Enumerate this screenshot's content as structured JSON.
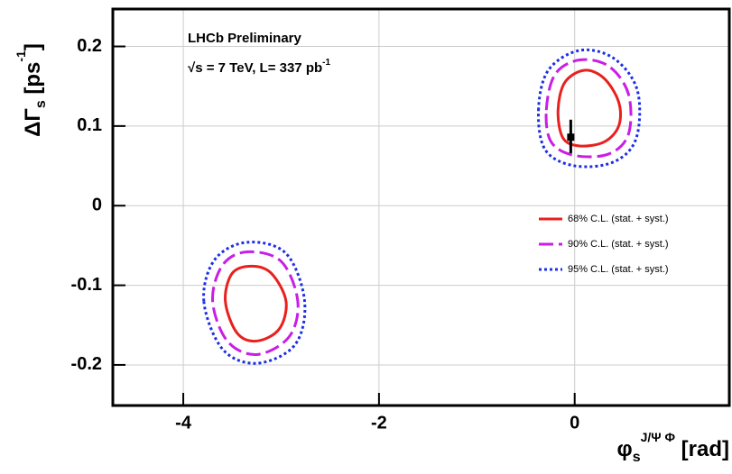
{
  "chart_data": {
    "type": "contour",
    "annotations": [
      "LHCb Preliminary",
      "√s = 7 TeV, L= 337 pb",
      "-1"
    ],
    "xlabel_parts": [
      {
        "text": "φ"
      },
      {
        "text": "s",
        "shift": "sub"
      },
      {
        "text": "J/Ψ Φ",
        "shift": "super"
      },
      {
        "text": " [rad]"
      }
    ],
    "ylabel_parts": [
      {
        "text": "ΔΓ"
      },
      {
        "text": "s",
        "shift": "sub"
      },
      {
        "text": " [ps"
      },
      {
        "text": "-1",
        "shift": "super"
      },
      {
        "text": "]"
      }
    ],
    "xlim": [
      -4.72,
      1.58
    ],
    "ylim": [
      -0.251,
      0.247
    ],
    "xticks": [
      -4,
      -2,
      0
    ],
    "yticks": [
      -0.2,
      -0.1,
      0,
      0.1,
      0.2
    ],
    "grid": true,
    "legend": "right",
    "series": [
      {
        "name": "68% C.L. (stat. + syst.)",
        "color": "#e8201e",
        "dash": "solid",
        "x": [
          -0.17,
          -0.1,
          0.1,
          0.3,
          0.45,
          0.45,
          0.3,
          0.05,
          -0.12,
          -0.17,
          null,
          -3.57,
          -3.5,
          -3.3,
          -3.1,
          -2.95,
          -3.02,
          -3.25,
          -3.45,
          -3.57
        ],
        "y": [
          0.12,
          0.155,
          0.17,
          0.16,
          0.13,
          0.1,
          0.08,
          0.075,
          0.085,
          0.12,
          null,
          -0.12,
          -0.085,
          -0.076,
          -0.085,
          -0.12,
          -0.155,
          -0.17,
          -0.16,
          -0.12
        ]
      },
      {
        "name": "90% C.L. (stat. + syst.)",
        "color": "#c81ee6",
        "dash": "dashed",
        "x": [
          -0.29,
          -0.2,
          0.05,
          0.35,
          0.55,
          0.55,
          0.35,
          0.0,
          -0.24,
          -0.29,
          null,
          -3.7,
          -3.6,
          -3.35,
          -3.0,
          -2.83,
          -2.92,
          -3.25,
          -3.55,
          -3.7
        ],
        "y": [
          0.12,
          0.165,
          0.183,
          0.175,
          0.14,
          0.09,
          0.065,
          0.063,
          0.08,
          0.12,
          null,
          -0.12,
          -0.075,
          -0.058,
          -0.07,
          -0.12,
          -0.165,
          -0.187,
          -0.17,
          -0.12
        ]
      },
      {
        "name": "95% C.L. (stat. + syst.)",
        "color": "#1e2ee6",
        "dash": "dotted",
        "x": [
          -0.37,
          -0.27,
          0.05,
          0.4,
          0.64,
          0.63,
          0.4,
          0.0,
          -0.3,
          -0.37,
          null,
          -3.79,
          -3.68,
          -3.35,
          -2.95,
          -2.76,
          -2.86,
          -3.25,
          -3.6,
          -3.79
        ],
        "y": [
          0.12,
          0.17,
          0.195,
          0.185,
          0.145,
          0.085,
          0.055,
          0.05,
          0.07,
          0.12,
          null,
          -0.12,
          -0.068,
          -0.046,
          -0.06,
          -0.12,
          -0.175,
          -0.198,
          -0.18,
          -0.12
        ]
      }
    ],
    "point": {
      "x": -0.04,
      "y": 0.086,
      "y_low": 0.066,
      "y_high": 0.108,
      "color": "#000000"
    }
  }
}
